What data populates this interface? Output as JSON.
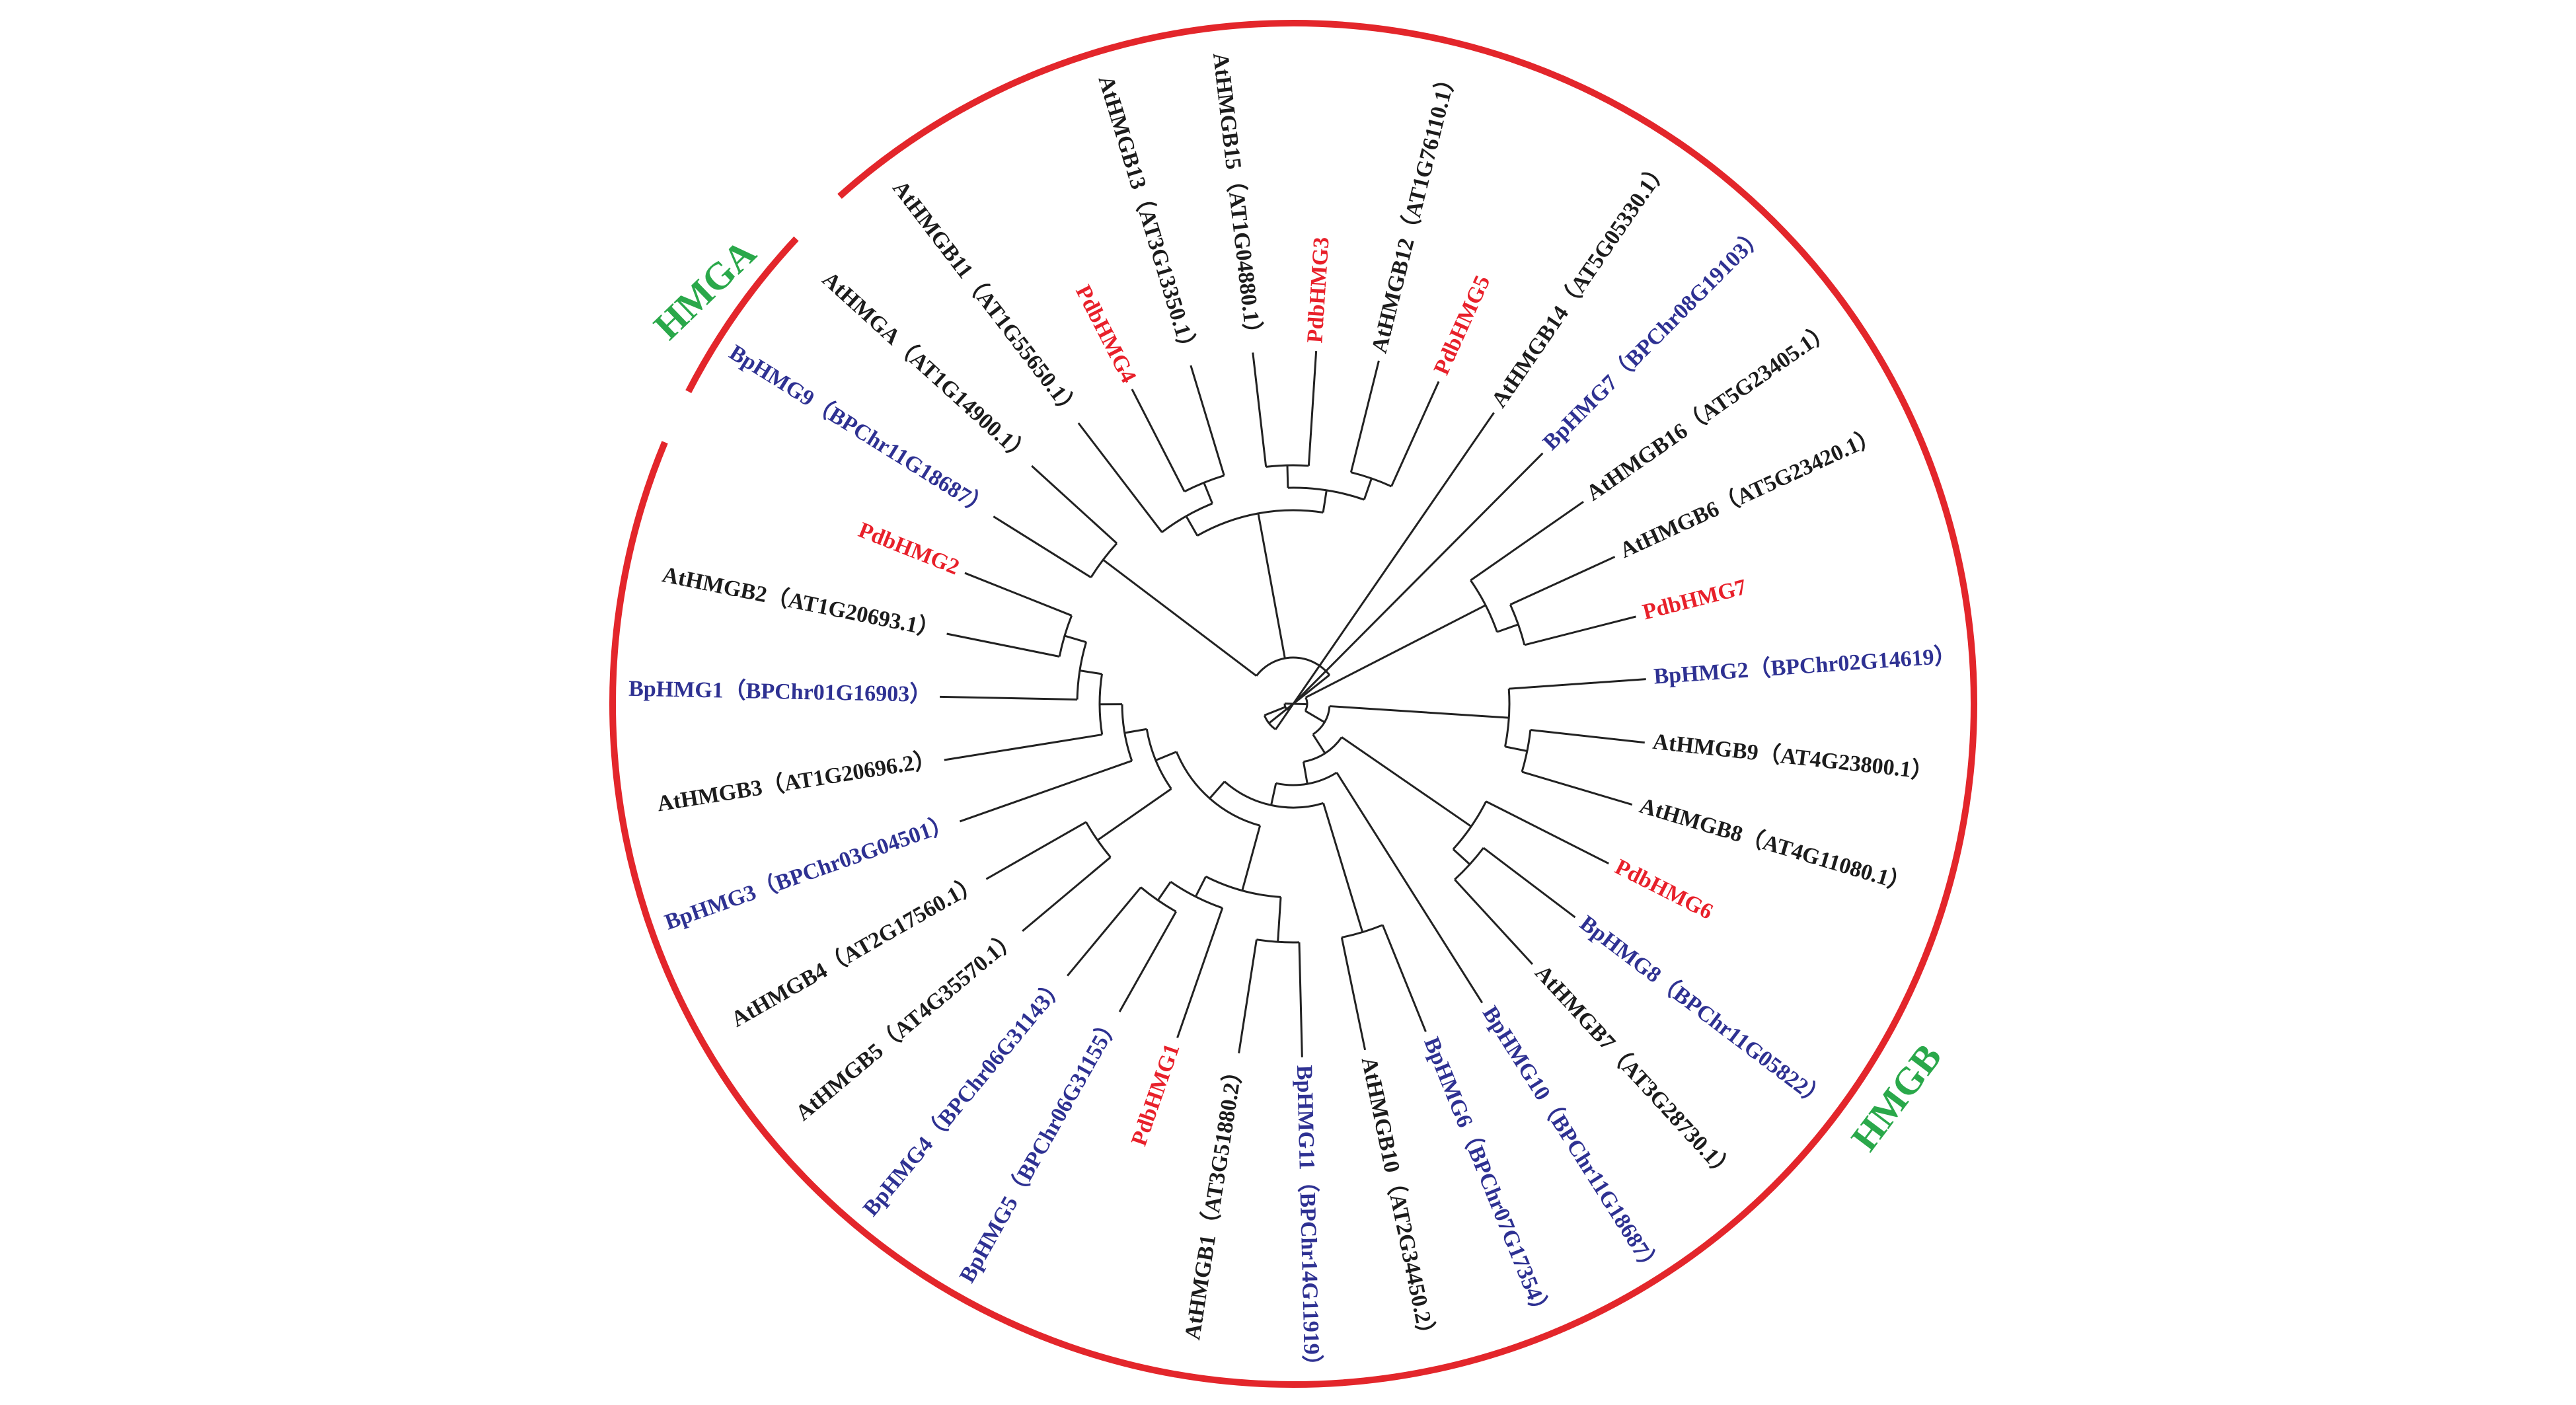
{
  "colors": {
    "At": "#1c1c1c",
    "Pdb": "#e8202a",
    "Bp": "#2e3192",
    "group_arc": "#e3262b",
    "group_label": "#2aa84a",
    "branch": "#222222"
  },
  "groups": {
    "hmga": "HMGA",
    "hmgb": "HMGB"
  },
  "leaves": [
    {
      "id": "BpHMG9",
      "label": "BpHMG9（BPChr11G18687）",
      "species": "Bp"
    },
    {
      "id": "AtHMGA",
      "label": "AtHMGA（AT1G14900.1）",
      "species": "At"
    },
    {
      "id": "AtHMGB11",
      "label": "AtHMGB11（AT1G55650.1）",
      "species": "At"
    },
    {
      "id": "PdbHMG4",
      "label": "PdbHMG4",
      "species": "Pdb"
    },
    {
      "id": "AtHMGB13",
      "label": "AtHMGB13（AT3G13350.1）",
      "species": "At"
    },
    {
      "id": "AtHMGB15",
      "label": "AtHMGB15（AT1G04880.1）",
      "species": "At"
    },
    {
      "id": "PdbHMG3",
      "label": "PdbHMG3",
      "species": "Pdb"
    },
    {
      "id": "AtHMGB12",
      "label": "AtHMGB12（AT1G76110.1）",
      "species": "At"
    },
    {
      "id": "PdbHMG5",
      "label": "PdbHMG5",
      "species": "Pdb"
    },
    {
      "id": "AtHMGB14",
      "label": "AtHMGB14（AT5G05330.1）",
      "species": "At"
    },
    {
      "id": "BpHMG7",
      "label": "BpHMG7（BPChr08G19103）",
      "species": "Bp"
    },
    {
      "id": "AtHMGB16",
      "label": "AtHMGB16（AT5G23405.1）",
      "species": "At"
    },
    {
      "id": "AtHMGB6",
      "label": "AtHMGB6（AT5G23420.1）",
      "species": "At"
    },
    {
      "id": "PdbHMG7",
      "label": "PdbHMG7",
      "species": "Pdb"
    },
    {
      "id": "BpHMG2",
      "label": "BpHMG2（BPChr02G14619）",
      "species": "Bp"
    },
    {
      "id": "AtHMGB9",
      "label": "AtHMGB9（AT4G23800.1）",
      "species": "At"
    },
    {
      "id": "AtHMGB8",
      "label": "AtHMGB8（AT4G11080.1）",
      "species": "At"
    },
    {
      "id": "PdbHMG6",
      "label": "PdbHMG6",
      "species": "Pdb"
    },
    {
      "id": "BpHMG8",
      "label": "BpHMG8（BPChr11G05822）",
      "species": "Bp"
    },
    {
      "id": "AtHMGB7",
      "label": "AtHMGB7（AT3G28730.1）",
      "species": "At"
    },
    {
      "id": "BpHMG10",
      "label": "BpHMG10（BPChr11G18687）",
      "species": "Bp"
    },
    {
      "id": "BpHMG6",
      "label": "BpHMG6（BPChr07G17354）",
      "species": "Bp"
    },
    {
      "id": "AtHMGB10",
      "label": "AtHMGB10（AT2G34450.2）",
      "species": "At"
    },
    {
      "id": "BpHMG11",
      "label": "BpHMG11（BPChr14G11919）",
      "species": "Bp"
    },
    {
      "id": "AtHMGB1",
      "label": "AtHMGB1（AT3G51880.2）",
      "species": "At"
    },
    {
      "id": "PdbHMG1",
      "label": "PdbHMG1",
      "species": "Pdb"
    },
    {
      "id": "BpHMG5",
      "label": "BpHMG5（BPChr06G31155）",
      "species": "Bp"
    },
    {
      "id": "BpHMG4",
      "label": "BpHMG4（BPChr06G31143）",
      "species": "Bp"
    },
    {
      "id": "AtHMGB5",
      "label": "AtHMGB5（AT4G35570.1）",
      "species": "At"
    },
    {
      "id": "AtHMGB4",
      "label": "AtHMGB4（AT2G17560.1）",
      "species": "At"
    },
    {
      "id": "BpHMG3",
      "label": "BpHMG3（BPChr03G04501）",
      "species": "Bp"
    },
    {
      "id": "AtHMGB3",
      "label": "AtHMGB3（AT1G20696.2）",
      "species": "At"
    },
    {
      "id": "BpHMG1",
      "label": "BpHMG1（BPChr01G16903）",
      "species": "Bp"
    },
    {
      "id": "AtHMGB2",
      "label": "AtHMGB2（AT1G20693.1）",
      "species": "At"
    },
    {
      "id": "PdbHMG2",
      "label": "PdbHMG2",
      "species": "Pdb"
    }
  ],
  "tree": [
    [
      "BpHMG9",
      "AtHMGA"
    ],
    [
      [
        "AtHMGB11",
        [
          "PdbHMG4",
          "AtHMGB13"
        ]
      ],
      [
        [
          "AtHMGB15",
          "PdbHMG3"
        ],
        [
          "AtHMGB12",
          "PdbHMG5"
        ]
      ]
    ],
    [
      "AtHMGB14",
      [
        "BpHMG7",
        [
          [
            "AtHMGB16",
            [
              "AtHMGB6",
              "PdbHMG7"
            ]
          ],
          [
            [
              "BpHMG2",
              [
                "AtHMGB9",
                "AtHMGB8"
              ]
            ],
            [
              [
                "PdbHMG6",
                [
                  "BpHMG8",
                  "AtHMGB7"
                ]
              ],
              [
                "BpHMG10",
                [
                  [
                    "BpHMG6",
                    "AtHMGB10"
                  ],
                  [
                    [
                      [
                        "BpHMG11",
                        "AtHMGB1"
                      ],
                      [
                        "PdbHMG1",
                        [
                          "BpHMG5",
                          "BpHMG4"
                        ]
                      ]
                    ],
                    [
                      [
                        "AtHMGB5",
                        "AtHMGB4"
                      ],
                      [
                        "BpHMG3",
                        [
                          "AtHMGB3",
                          [
                            "BpHMG1",
                            [
                              "AtHMGB2",
                              "PdbHMG2"
                            ]
                          ]
                        ]
                      ]
                    ]
                  ]
                ]
              ]
            ]
          ]
        ]
      ]
    ]
  ]
}
